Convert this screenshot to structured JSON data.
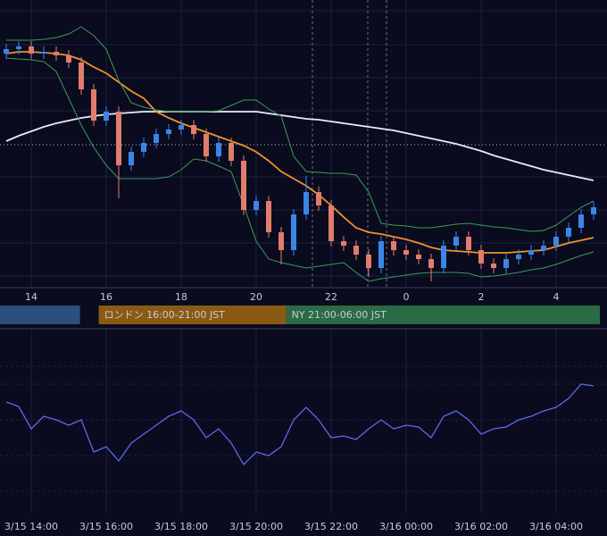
{
  "chart_data": [
    {
      "type": "candlestick",
      "up_color": "#3a86e8",
      "down_color": "#e07d6c",
      "ylim": [
        0,
        322
      ],
      "xticks": [
        {
          "value": 2,
          "label": "14"
        },
        {
          "value": 8,
          "label": "16"
        },
        {
          "value": 14,
          "label": "18"
        },
        {
          "value": 20,
          "label": "20"
        },
        {
          "value": 26,
          "label": "22"
        },
        {
          "value": 32,
          "label": "0"
        },
        {
          "value": 38,
          "label": "2"
        },
        {
          "value": 44,
          "label": "4"
        }
      ],
      "open": [
        262,
        267,
        270,
        262,
        264,
        260,
        252,
        222,
        187,
        197,
        137,
        152,
        162,
        172,
        177,
        182,
        172,
        147,
        162,
        142,
        87,
        97,
        62,
        42,
        82,
        107,
        92,
        52,
        47,
        37,
        22,
        52,
        42,
        37,
        32,
        22,
        47,
        57,
        42,
        27,
        22,
        32,
        37,
        42,
        47,
        57,
        67,
        82
      ],
      "high": [
        273,
        276,
        276,
        270,
        270,
        266,
        258,
        228,
        203,
        203,
        158,
        168,
        178,
        183,
        188,
        188,
        178,
        168,
        168,
        148,
        103,
        103,
        68,
        88,
        125,
        113,
        98,
        58,
        53,
        43,
        58,
        58,
        48,
        43,
        38,
        53,
        63,
        63,
        48,
        33,
        38,
        43,
        48,
        53,
        63,
        73,
        88,
        96
      ],
      "low": [
        256,
        261,
        256,
        256,
        254,
        246,
        216,
        181,
        181,
        100,
        131,
        146,
        156,
        166,
        171,
        166,
        141,
        141,
        136,
        81,
        81,
        56,
        26,
        36,
        76,
        86,
        46,
        41,
        31,
        12,
        16,
        36,
        31,
        26,
        7,
        16,
        41,
        36,
        21,
        16,
        16,
        26,
        31,
        36,
        41,
        51,
        61,
        76
      ],
      "close": [
        267,
        270,
        262,
        264,
        260,
        252,
        222,
        187,
        197,
        137,
        152,
        162,
        172,
        177,
        182,
        172,
        147,
        162,
        142,
        87,
        97,
        62,
        42,
        82,
        107,
        92,
        52,
        47,
        37,
        22,
        52,
        42,
        37,
        32,
        22,
        47,
        57,
        42,
        27,
        22,
        32,
        37,
        42,
        47,
        57,
        67,
        82,
        90
      ],
      "series": [
        {
          "color": "#e8ecf4",
          "values": [
            164,
            170,
            175,
            180,
            184,
            187,
            190,
            192,
            194,
            195,
            196,
            197,
            197,
            197,
            197,
            197,
            197,
            197,
            197,
            197,
            197,
            195,
            193,
            191,
            189,
            188,
            186,
            184,
            182,
            180,
            178,
            176,
            173,
            170,
            167,
            164,
            161,
            157,
            153,
            148,
            144,
            140,
            136,
            132,
            129,
            126,
            123,
            120
          ]
        },
        {
          "color": "#f0922a",
          "values": [
            262,
            264,
            264,
            263,
            262,
            260,
            255,
            247,
            240,
            230,
            220,
            212,
            197,
            190,
            184,
            179,
            174,
            169,
            164,
            159,
            152,
            142,
            130,
            122,
            114,
            104,
            92,
            79,
            67,
            62,
            60,
            57,
            54,
            50,
            45,
            42,
            41,
            40,
            39,
            39,
            39,
            40,
            41,
            42,
            46,
            50,
            53,
            56
          ]
        },
        {
          "color": "#3f9a58",
          "values": [
            277,
            277,
            277,
            278,
            280,
            284,
            292,
            282,
            267,
            232,
            207,
            202,
            199,
            197,
            197,
            197,
            197,
            198,
            204,
            210,
            210,
            200,
            192,
            147,
            130,
            129,
            128,
            128,
            126,
            107,
            72,
            70,
            69,
            67,
            67,
            69,
            71,
            72,
            70,
            68,
            67,
            65,
            63,
            64,
            70,
            80,
            90,
            97
          ]
        },
        {
          "color": "#3f9a58",
          "values": [
            257,
            256,
            255,
            253,
            242,
            212,
            182,
            157,
            137,
            122,
            122,
            122,
            122,
            124,
            132,
            144,
            142,
            136,
            130,
            92,
            52,
            32,
            28,
            25,
            22,
            24,
            26,
            28,
            17,
            7,
            10,
            12,
            14,
            16,
            17,
            17,
            17,
            16,
            12,
            13,
            15,
            17,
            20,
            22,
            26,
            31,
            36,
            40
          ]
        }
      ],
      "sessions": [
        {
          "color": "#2c4f7c",
          "start": -0.5,
          "end": 6.4
        },
        {
          "color": "#8a5a14",
          "start": 7.9,
          "end": 22.9,
          "label": "ロンドン 16:00-21:00 JST"
        },
        {
          "color": "#2a6a45",
          "start": 22.9,
          "end": 48,
          "label": "NY 21:00-06:00 JST"
        }
      ]
    },
    {
      "type": "line",
      "color": "#5a6ae8",
      "ylim": [
        0,
        100
      ],
      "values": [
        60,
        57.5,
        45,
        52,
        50,
        47,
        50,
        32,
        35,
        27,
        37,
        42,
        47,
        52,
        55,
        50,
        40,
        45,
        37,
        25,
        32,
        30,
        35,
        50,
        57,
        50,
        40,
        41,
        39,
        45,
        50,
        45,
        47,
        46,
        40,
        52,
        55,
        50,
        42,
        45,
        46,
        50,
        52,
        55,
        57,
        62,
        70,
        69
      ],
      "xticks": [
        {
          "value": 2,
          "label": "3/15 14:00"
        },
        {
          "value": 8,
          "label": "3/15 16:00"
        },
        {
          "value": 14,
          "label": "3/15 18:00"
        },
        {
          "value": 20,
          "label": "3/15 20:00"
        },
        {
          "value": 26,
          "label": "3/15 22:00"
        },
        {
          "value": 32,
          "label": "3/16 00:00"
        },
        {
          "value": 38,
          "label": "3/16 02:00"
        },
        {
          "value": 44,
          "label": "3/16 04:00"
        }
      ]
    }
  ]
}
